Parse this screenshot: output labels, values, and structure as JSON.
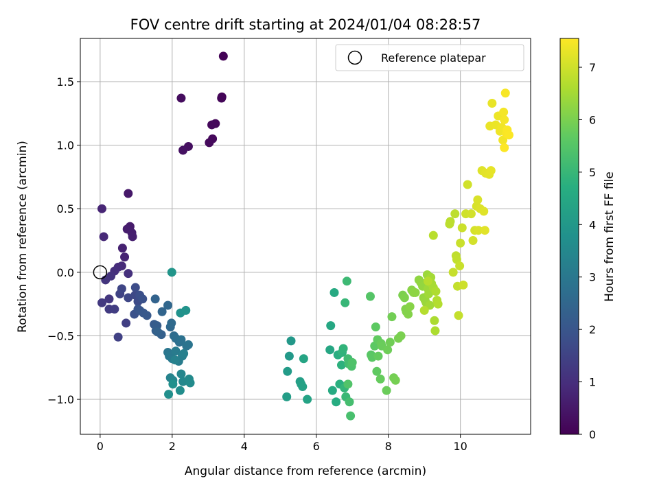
{
  "chart_data": {
    "type": "scatter",
    "title": "FOV centre drift starting at 2024/01/04 08:28:57",
    "xlabel": "Angular distance from reference (arcmin)",
    "ylabel": "Rotation from reference (arcmin)",
    "xlim": [
      -0.55,
      11.95
    ],
    "ylim": [
      -1.275,
      1.84
    ],
    "xticks": [
      0,
      2,
      4,
      6,
      8,
      10
    ],
    "xtick_labels": [
      "0",
      "2",
      "4",
      "6",
      "8",
      "10"
    ],
    "yticks": [
      -1.0,
      -0.5,
      0.0,
      0.5,
      1.0,
      1.5
    ],
    "ytick_labels": [
      "−1.0",
      "−0.5",
      "0.0",
      "0.5",
      "1.0",
      "1.5"
    ],
    "grid": true,
    "legend": {
      "position": "top-right",
      "entries": [
        "Reference platepar"
      ]
    },
    "reference_point": {
      "x": 0,
      "y": 0
    },
    "colorbar": {
      "label": "Hours from first FF file",
      "colormap": "viridis",
      "range": [
        0,
        7.55
      ],
      "ticks": [
        0,
        1,
        2,
        3,
        4,
        5,
        6,
        7
      ],
      "tick_labels": [
        "0",
        "1",
        "2",
        "3",
        "4",
        "5",
        "6",
        "7"
      ]
    },
    "points": [
      {
        "x": 3.42,
        "y": 1.7,
        "c": 0.05
      },
      {
        "x": 3.38,
        "y": 1.38,
        "c": 0.08
      },
      {
        "x": 3.37,
        "y": 1.37,
        "c": 0.1
      },
      {
        "x": 3.2,
        "y": 1.17,
        "c": 0.12
      },
      {
        "x": 3.1,
        "y": 1.16,
        "c": 0.15
      },
      {
        "x": 3.12,
        "y": 1.05,
        "c": 0.18
      },
      {
        "x": 3.03,
        "y": 1.02,
        "c": 0.2
      },
      {
        "x": 2.25,
        "y": 1.37,
        "c": 0.25
      },
      {
        "x": 2.45,
        "y": 0.99,
        "c": 0.3
      },
      {
        "x": 2.3,
        "y": 0.96,
        "c": 0.35
      },
      {
        "x": 0.78,
        "y": 0.62,
        "c": 0.5
      },
      {
        "x": 0.83,
        "y": 0.36,
        "c": 0.55
      },
      {
        "x": 0.75,
        "y": 0.34,
        "c": 0.6
      },
      {
        "x": 0.88,
        "y": 0.31,
        "c": 0.62
      },
      {
        "x": 0.9,
        "y": 0.28,
        "c": 0.65
      },
      {
        "x": 0.62,
        "y": 0.19,
        "c": 0.7
      },
      {
        "x": 0.68,
        "y": 0.12,
        "c": 0.75
      },
      {
        "x": 0.05,
        "y": 0.5,
        "c": 0.8
      },
      {
        "x": 0.1,
        "y": 0.28,
        "c": 0.85
      },
      {
        "x": 0.6,
        "y": 0.05,
        "c": 0.9
      },
      {
        "x": 0.5,
        "y": 0.04,
        "c": 0.95
      },
      {
        "x": 0.4,
        "y": 0.01,
        "c": 1.0
      },
      {
        "x": 0.78,
        "y": -0.01,
        "c": 1.05
      },
      {
        "x": 0.3,
        "y": -0.03,
        "c": 1.1
      },
      {
        "x": 0.15,
        "y": -0.06,
        "c": 1.15
      },
      {
        "x": 0.25,
        "y": -0.21,
        "c": 1.2
      },
      {
        "x": 0.05,
        "y": -0.24,
        "c": 1.25
      },
      {
        "x": 0.25,
        "y": -0.29,
        "c": 1.3
      },
      {
        "x": 0.4,
        "y": -0.29,
        "c": 1.35
      },
      {
        "x": 0.72,
        "y": -0.4,
        "c": 1.4
      },
      {
        "x": 0.5,
        "y": -0.51,
        "c": 1.45
      },
      {
        "x": 0.55,
        "y": -0.17,
        "c": 1.5
      },
      {
        "x": 0.6,
        "y": -0.13,
        "c": 1.55
      },
      {
        "x": 0.78,
        "y": -0.2,
        "c": 1.6
      },
      {
        "x": 0.97,
        "y": -0.18,
        "c": 1.65
      },
      {
        "x": 1.05,
        "y": -0.23,
        "c": 1.7
      },
      {
        "x": 0.98,
        "y": -0.12,
        "c": 1.75
      },
      {
        "x": 1.1,
        "y": -0.18,
        "c": 1.8
      },
      {
        "x": 1.18,
        "y": -0.21,
        "c": 1.85
      },
      {
        "x": 0.95,
        "y": -0.33,
        "c": 1.9
      },
      {
        "x": 1.05,
        "y": -0.29,
        "c": 1.95
      },
      {
        "x": 1.1,
        "y": -0.3,
        "c": 2.0
      },
      {
        "x": 1.2,
        "y": -0.32,
        "c": 2.05
      },
      {
        "x": 1.3,
        "y": -0.34,
        "c": 2.1
      },
      {
        "x": 1.5,
        "y": -0.41,
        "c": 2.15
      },
      {
        "x": 1.58,
        "y": -0.42,
        "c": 2.2
      },
      {
        "x": 1.55,
        "y": -0.46,
        "c": 2.25
      },
      {
        "x": 1.7,
        "y": -0.49,
        "c": 2.3
      },
      {
        "x": 1.6,
        "y": -0.47,
        "c": 2.35
      },
      {
        "x": 1.53,
        "y": -0.21,
        "c": 2.4
      },
      {
        "x": 1.72,
        "y": -0.31,
        "c": 2.45
      },
      {
        "x": 1.88,
        "y": -0.26,
        "c": 2.5
      },
      {
        "x": 1.95,
        "y": -0.43,
        "c": 2.55
      },
      {
        "x": 1.98,
        "y": -0.4,
        "c": 2.6
      },
      {
        "x": 2.05,
        "y": -0.5,
        "c": 2.65
      },
      {
        "x": 2.1,
        "y": -0.52,
        "c": 2.7
      },
      {
        "x": 2.2,
        "y": -0.55,
        "c": 2.75
      },
      {
        "x": 2.25,
        "y": -0.53,
        "c": 2.8
      },
      {
        "x": 2.4,
        "y": -0.58,
        "c": 2.85
      },
      {
        "x": 2.45,
        "y": -0.57,
        "c": 2.9
      },
      {
        "x": 1.88,
        "y": -0.63,
        "c": 2.95
      },
      {
        "x": 1.92,
        "y": -0.66,
        "c": 3.0
      },
      {
        "x": 2.0,
        "y": -0.68,
        "c": 3.05
      },
      {
        "x": 2.1,
        "y": -0.62,
        "c": 3.1
      },
      {
        "x": 2.18,
        "y": -0.7,
        "c": 3.15
      },
      {
        "x": 2.28,
        "y": -0.66,
        "c": 3.2
      },
      {
        "x": 2.32,
        "y": -0.64,
        "c": 3.25
      },
      {
        "x": 2.08,
        "y": -0.69,
        "c": 3.3
      },
      {
        "x": 1.95,
        "y": -0.83,
        "c": 3.35
      },
      {
        "x": 2.02,
        "y": -0.85,
        "c": 3.4
      },
      {
        "x": 2.25,
        "y": -0.8,
        "c": 3.45
      },
      {
        "x": 2.3,
        "y": -0.86,
        "c": 3.5
      },
      {
        "x": 2.47,
        "y": -0.84,
        "c": 3.55
      },
      {
        "x": 2.5,
        "y": -0.87,
        "c": 3.6
      },
      {
        "x": 2.22,
        "y": -0.93,
        "c": 3.65
      },
      {
        "x": 1.9,
        "y": -0.96,
        "c": 3.7
      },
      {
        "x": 2.02,
        "y": -0.88,
        "c": 3.75
      },
      {
        "x": 2.23,
        "y": -0.32,
        "c": 3.8
      },
      {
        "x": 2.38,
        "y": -0.3,
        "c": 3.85
      },
      {
        "x": 1.99,
        "y": 0.0,
        "c": 3.9
      },
      {
        "x": 5.3,
        "y": -0.54,
        "c": 4.0
      },
      {
        "x": 5.25,
        "y": -0.66,
        "c": 4.05
      },
      {
        "x": 5.2,
        "y": -0.78,
        "c": 4.1
      },
      {
        "x": 5.18,
        "y": -0.98,
        "c": 4.15
      },
      {
        "x": 5.55,
        "y": -0.86,
        "c": 4.2
      },
      {
        "x": 5.58,
        "y": -0.88,
        "c": 4.25
      },
      {
        "x": 5.62,
        "y": -0.9,
        "c": 4.3
      },
      {
        "x": 5.75,
        "y": -1.0,
        "c": 4.35
      },
      {
        "x": 5.65,
        "y": -0.68,
        "c": 4.4
      },
      {
        "x": 6.38,
        "y": -0.61,
        "c": 4.45
      },
      {
        "x": 6.4,
        "y": -0.42,
        "c": 4.5
      },
      {
        "x": 6.5,
        "y": -0.16,
        "c": 4.55
      },
      {
        "x": 6.45,
        "y": -0.93,
        "c": 4.6
      },
      {
        "x": 6.55,
        "y": -1.02,
        "c": 4.65
      },
      {
        "x": 6.6,
        "y": -0.65,
        "c": 4.7
      },
      {
        "x": 6.65,
        "y": -0.88,
        "c": 4.75
      },
      {
        "x": 6.7,
        "y": -0.73,
        "c": 4.8
      },
      {
        "x": 6.72,
        "y": -0.63,
        "c": 4.85
      },
      {
        "x": 6.75,
        "y": -0.6,
        "c": 4.9
      },
      {
        "x": 6.78,
        "y": -0.91,
        "c": 4.95
      },
      {
        "x": 6.8,
        "y": -0.24,
        "c": 5.0
      },
      {
        "x": 6.82,
        "y": -0.98,
        "c": 5.05
      },
      {
        "x": 6.85,
        "y": -0.07,
        "c": 5.1
      },
      {
        "x": 6.88,
        "y": -0.68,
        "c": 5.15
      },
      {
        "x": 6.9,
        "y": -0.72,
        "c": 5.2
      },
      {
        "x": 6.92,
        "y": -1.02,
        "c": 5.25
      },
      {
        "x": 6.95,
        "y": -1.13,
        "c": 5.3
      },
      {
        "x": 6.98,
        "y": -0.74,
        "c": 5.35
      },
      {
        "x": 7.0,
        "y": -0.71,
        "c": 5.4
      },
      {
        "x": 6.88,
        "y": -0.88,
        "c": 5.45
      },
      {
        "x": 7.5,
        "y": -0.19,
        "c": 5.5
      },
      {
        "x": 7.52,
        "y": -0.65,
        "c": 5.55
      },
      {
        "x": 7.55,
        "y": -0.67,
        "c": 5.6
      },
      {
        "x": 7.62,
        "y": -0.58,
        "c": 5.62
      },
      {
        "x": 7.65,
        "y": -0.43,
        "c": 5.65
      },
      {
        "x": 7.68,
        "y": -0.78,
        "c": 5.68
      },
      {
        "x": 7.7,
        "y": -0.53,
        "c": 5.7
      },
      {
        "x": 7.72,
        "y": -0.66,
        "c": 5.72
      },
      {
        "x": 7.78,
        "y": -0.84,
        "c": 5.75
      },
      {
        "x": 7.8,
        "y": -0.56,
        "c": 5.78
      },
      {
        "x": 7.82,
        "y": -0.58,
        "c": 5.8
      },
      {
        "x": 7.95,
        "y": -0.93,
        "c": 5.82
      },
      {
        "x": 7.98,
        "y": -0.61,
        "c": 5.85
      },
      {
        "x": 8.05,
        "y": -0.55,
        "c": 5.88
      },
      {
        "x": 8.1,
        "y": -0.35,
        "c": 5.9
      },
      {
        "x": 8.15,
        "y": -0.83,
        "c": 5.92
      },
      {
        "x": 8.2,
        "y": -0.85,
        "c": 5.95
      },
      {
        "x": 8.28,
        "y": -0.52,
        "c": 5.98
      },
      {
        "x": 8.35,
        "y": -0.5,
        "c": 6.0
      },
      {
        "x": 8.4,
        "y": -0.18,
        "c": 6.02
      },
      {
        "x": 8.45,
        "y": -0.2,
        "c": 6.05
      },
      {
        "x": 8.48,
        "y": -0.29,
        "c": 6.08
      },
      {
        "x": 8.5,
        "y": -0.31,
        "c": 6.1
      },
      {
        "x": 8.55,
        "y": -0.33,
        "c": 6.12
      },
      {
        "x": 8.6,
        "y": -0.27,
        "c": 6.15
      },
      {
        "x": 8.65,
        "y": -0.14,
        "c": 6.18
      },
      {
        "x": 8.7,
        "y": -0.16,
        "c": 6.2
      },
      {
        "x": 8.75,
        "y": -0.16,
        "c": 6.22
      },
      {
        "x": 8.85,
        "y": -0.06,
        "c": 6.25
      },
      {
        "x": 8.9,
        "y": -0.08,
        "c": 6.28
      },
      {
        "x": 8.95,
        "y": -0.11,
        "c": 6.3
      },
      {
        "x": 8.98,
        "y": -0.2,
        "c": 6.32
      },
      {
        "x": 9.02,
        "y": -0.22,
        "c": 6.35
      },
      {
        "x": 9.05,
        "y": -0.24,
        "c": 6.38
      },
      {
        "x": 9.08,
        "y": -0.02,
        "c": 6.4
      },
      {
        "x": 9.1,
        "y": -0.13,
        "c": 6.42
      },
      {
        "x": 9.12,
        "y": -0.17,
        "c": 6.45
      },
      {
        "x": 9.15,
        "y": -0.26,
        "c": 6.48
      },
      {
        "x": 9.18,
        "y": -0.04,
        "c": 6.5
      },
      {
        "x": 9.2,
        "y": -0.09,
        "c": 6.52
      },
      {
        "x": 9.25,
        "y": -0.12,
        "c": 6.55
      },
      {
        "x": 9.28,
        "y": -0.38,
        "c": 6.58
      },
      {
        "x": 9.3,
        "y": -0.46,
        "c": 6.6
      },
      {
        "x": 9.32,
        "y": -0.15,
        "c": 6.62
      },
      {
        "x": 9.35,
        "y": -0.22,
        "c": 6.65
      },
      {
        "x": 9.38,
        "y": -0.25,
        "c": 6.68
      },
      {
        "x": 9.0,
        "y": -0.3,
        "c": 6.7
      },
      {
        "x": 9.1,
        "y": -0.07,
        "c": 6.72
      },
      {
        "x": 9.25,
        "y": 0.29,
        "c": 6.74
      },
      {
        "x": 9.72,
        "y": 0.4,
        "c": 6.76
      },
      {
        "x": 9.7,
        "y": 0.38,
        "c": 6.78
      },
      {
        "x": 9.85,
        "y": 0.46,
        "c": 6.8
      },
      {
        "x": 9.88,
        "y": 0.13,
        "c": 6.82
      },
      {
        "x": 9.9,
        "y": 0.1,
        "c": 6.84
      },
      {
        "x": 9.92,
        "y": -0.11,
        "c": 6.86
      },
      {
        "x": 9.95,
        "y": -0.34,
        "c": 6.88
      },
      {
        "x": 9.8,
        "y": 0.0,
        "c": 6.9
      },
      {
        "x": 9.98,
        "y": 0.05,
        "c": 6.92
      },
      {
        "x": 10.0,
        "y": 0.23,
        "c": 6.94
      },
      {
        "x": 10.05,
        "y": 0.35,
        "c": 6.96
      },
      {
        "x": 10.08,
        "y": -0.1,
        "c": 6.98
      },
      {
        "x": 10.15,
        "y": 0.46,
        "c": 7.0
      },
      {
        "x": 10.2,
        "y": 0.69,
        "c": 7.02
      },
      {
        "x": 10.3,
        "y": 0.46,
        "c": 7.04
      },
      {
        "x": 10.35,
        "y": 0.25,
        "c": 7.06
      },
      {
        "x": 10.4,
        "y": 0.33,
        "c": 7.08
      },
      {
        "x": 10.45,
        "y": 0.52,
        "c": 7.1
      },
      {
        "x": 10.48,
        "y": 0.57,
        "c": 7.12
      },
      {
        "x": 10.5,
        "y": 0.33,
        "c": 7.14
      },
      {
        "x": 10.55,
        "y": 0.5,
        "c": 7.16
      },
      {
        "x": 10.6,
        "y": 0.8,
        "c": 7.18
      },
      {
        "x": 10.65,
        "y": 0.48,
        "c": 7.2
      },
      {
        "x": 10.68,
        "y": 0.33,
        "c": 7.22
      },
      {
        "x": 10.7,
        "y": 0.78,
        "c": 7.24
      },
      {
        "x": 10.8,
        "y": 0.77,
        "c": 7.26
      },
      {
        "x": 10.85,
        "y": 0.8,
        "c": 7.28
      },
      {
        "x": 10.88,
        "y": 1.33,
        "c": 7.3
      },
      {
        "x": 10.82,
        "y": 1.15,
        "c": 7.32
      },
      {
        "x": 10.98,
        "y": 1.16,
        "c": 7.34
      },
      {
        "x": 11.05,
        "y": 1.23,
        "c": 7.36
      },
      {
        "x": 11.1,
        "y": 1.11,
        "c": 7.38
      },
      {
        "x": 11.15,
        "y": 1.14,
        "c": 7.4
      },
      {
        "x": 11.18,
        "y": 1.04,
        "c": 7.42
      },
      {
        "x": 11.2,
        "y": 1.26,
        "c": 7.44
      },
      {
        "x": 11.22,
        "y": 1.2,
        "c": 7.46
      },
      {
        "x": 11.25,
        "y": 1.41,
        "c": 7.48
      },
      {
        "x": 11.28,
        "y": 1.09,
        "c": 7.5
      },
      {
        "x": 11.3,
        "y": 1.12,
        "c": 7.52
      },
      {
        "x": 11.35,
        "y": 1.08,
        "c": 7.53
      },
      {
        "x": 11.22,
        "y": 0.98,
        "c": 7.54
      }
    ]
  }
}
